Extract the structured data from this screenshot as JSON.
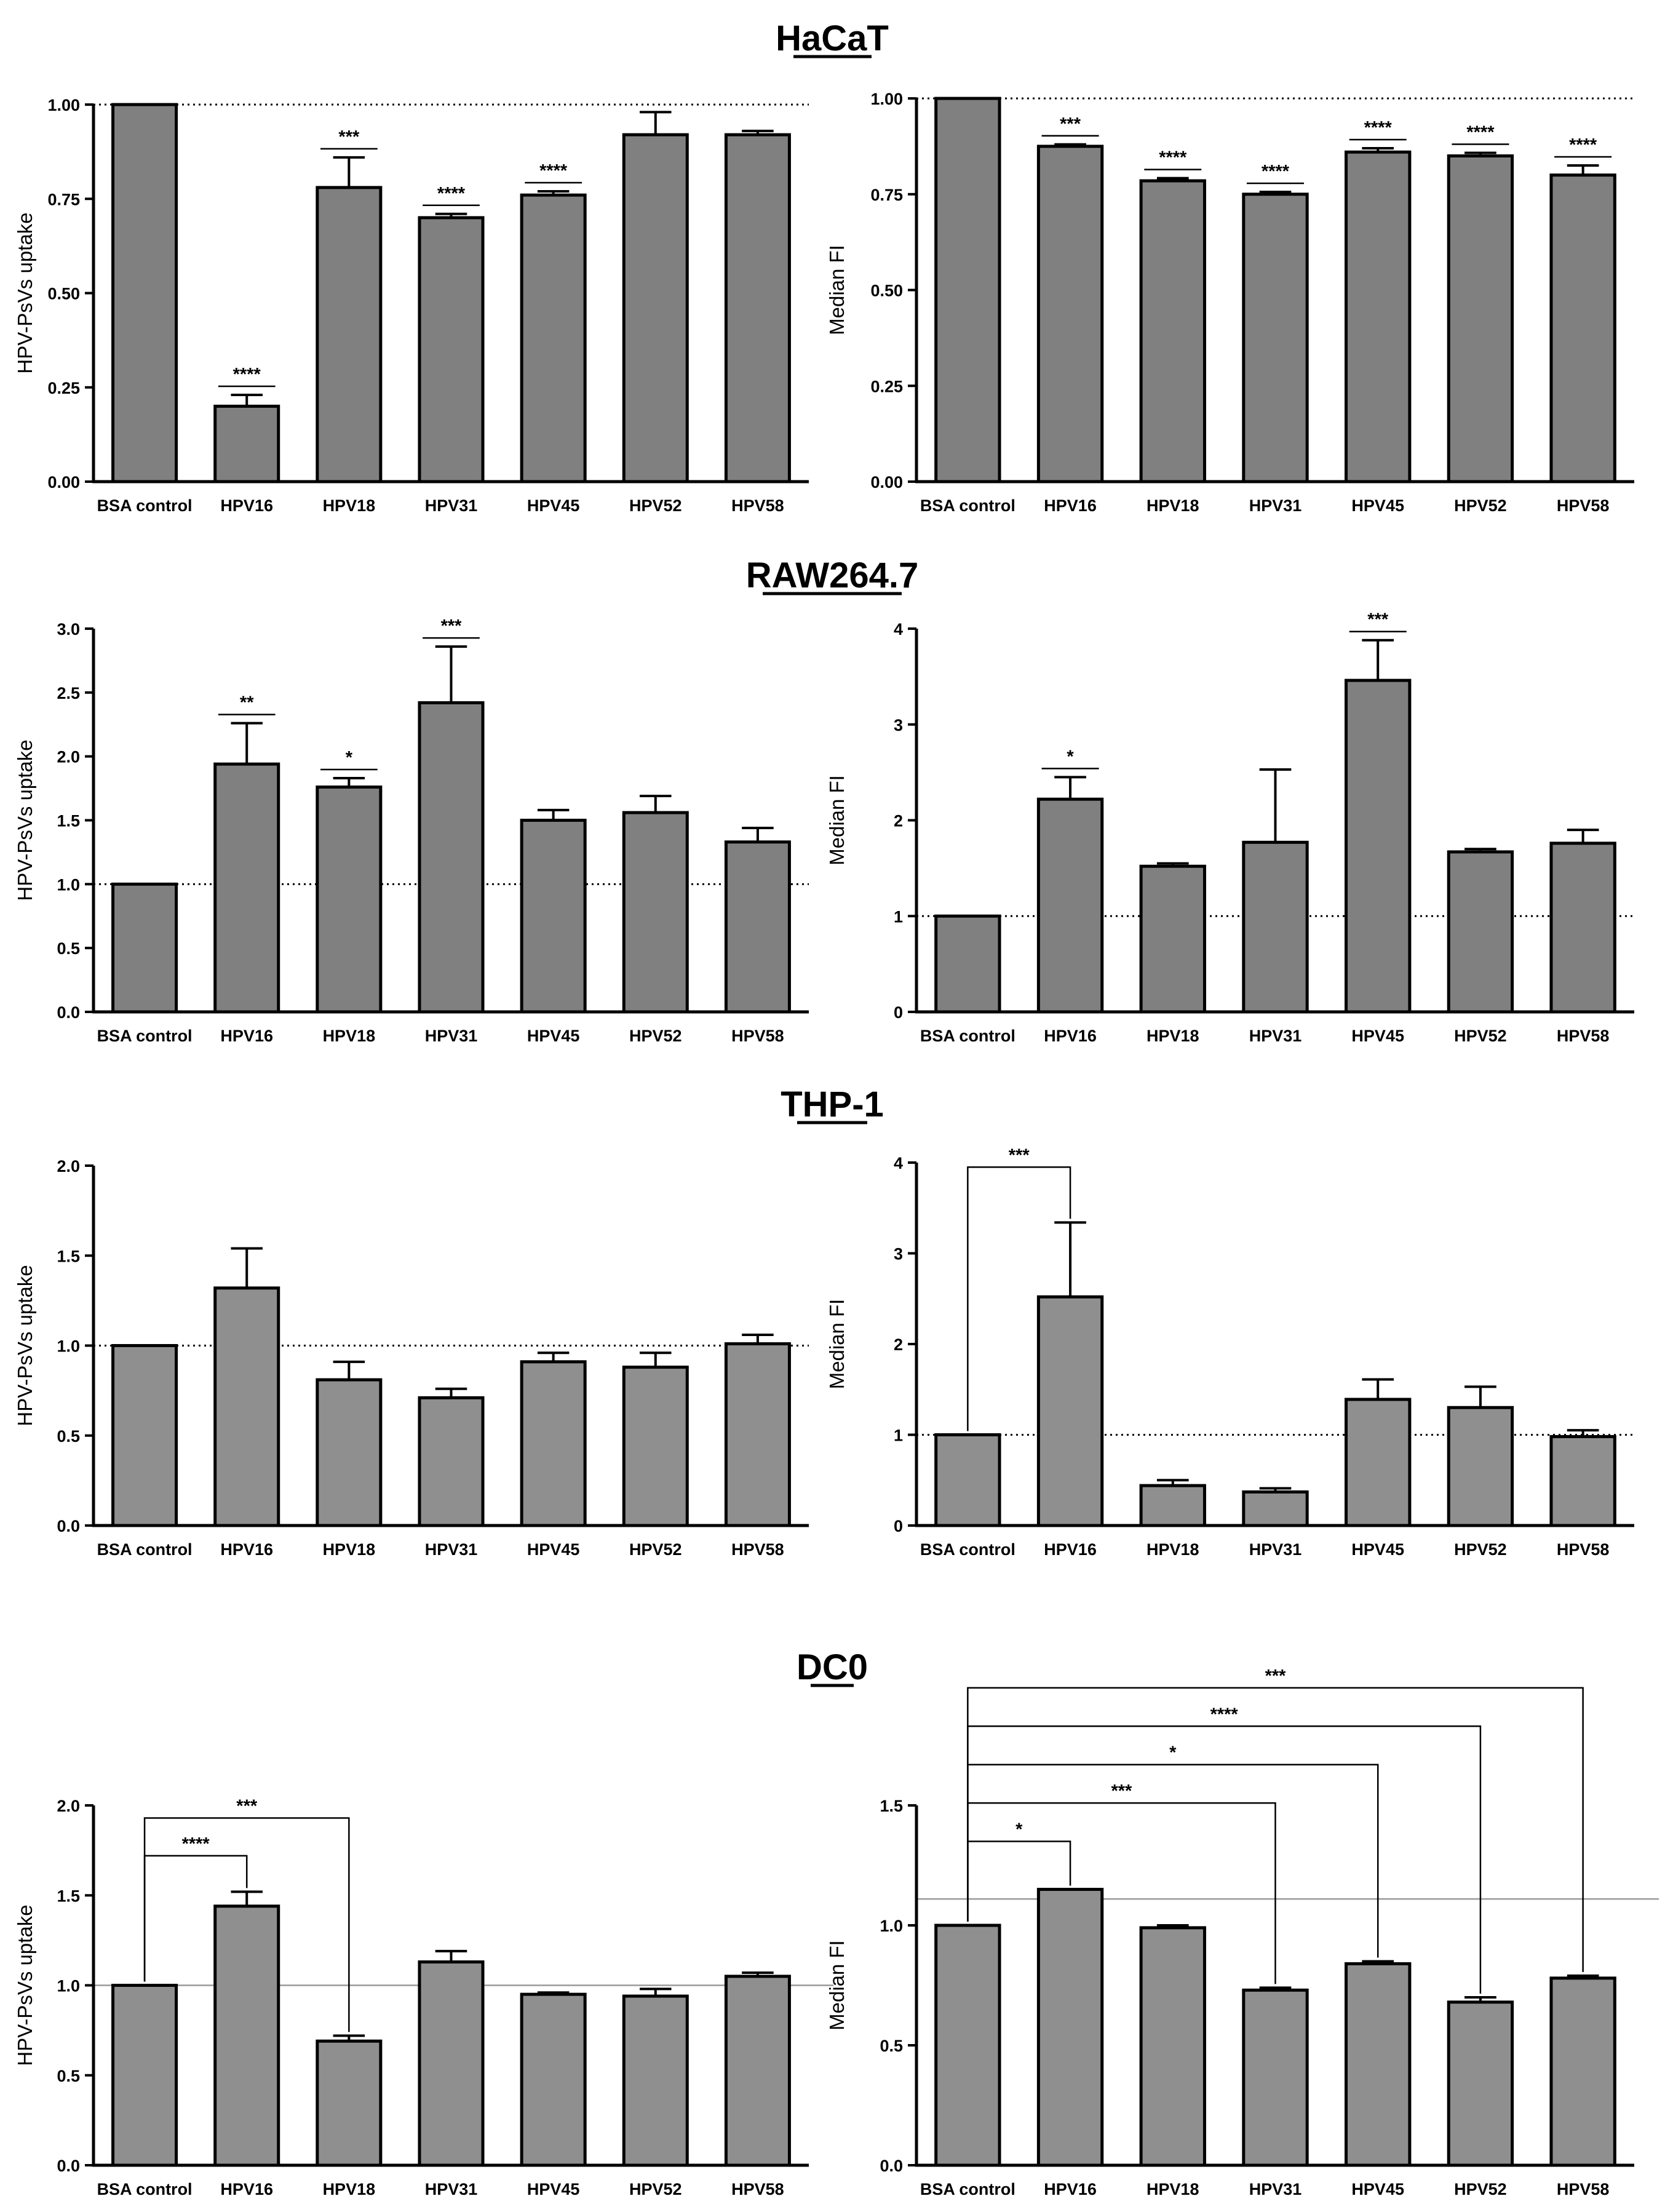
{
  "colors": {
    "bar": "#808080",
    "bar_light": "#8f8f8f",
    "stroke": "#000000",
    "ref_line_dotted": "#000000",
    "ref_line_solid": "#9a9a9a"
  },
  "sections": [
    "HaCaT",
    "RAW264.7",
    "THP-1",
    "DC0"
  ],
  "chart_data": [
    {
      "type": "bar",
      "section": "HaCaT",
      "title": "",
      "xlabel": "",
      "ylabel": "HPV-PsVs uptake",
      "categories": [
        "BSA control",
        "HPV16",
        "HPV18",
        "HPV31",
        "HPV45",
        "HPV52",
        "HPV58"
      ],
      "values": [
        1.0,
        0.2,
        0.78,
        0.7,
        0.76,
        0.92,
        0.92
      ],
      "errors": [
        0,
        0.03,
        0.08,
        0.01,
        0.01,
        0.06,
        0.01
      ],
      "ylim": [
        0,
        1.0
      ],
      "yticks": [
        0,
        0.25,
        0.5,
        0.75,
        1.0
      ],
      "ytick_labels": [
        "0.00",
        "0.25",
        "0.50",
        "0.75",
        "1.00"
      ],
      "reference_line": {
        "value": 1.0,
        "style": "dotted"
      },
      "significance": [
        {
          "bar": 1,
          "label": "****"
        },
        {
          "bar": 2,
          "label": "***"
        },
        {
          "bar": 3,
          "label": "****"
        },
        {
          "bar": 4,
          "label": "****"
        }
      ],
      "brackets": []
    },
    {
      "type": "bar",
      "section": "HaCaT",
      "title": "",
      "xlabel": "",
      "ylabel": "Median FI",
      "categories": [
        "BSA control",
        "HPV16",
        "HPV18",
        "HPV31",
        "HPV45",
        "HPV52",
        "HPV58"
      ],
      "values": [
        1.0,
        0.875,
        0.785,
        0.75,
        0.86,
        0.85,
        0.8
      ],
      "errors": [
        0,
        0.005,
        0.007,
        0.006,
        0.01,
        0.008,
        0.025
      ],
      "ylim": [
        0,
        1.0
      ],
      "yticks": [
        0,
        0.25,
        0.5,
        0.75,
        1.0
      ],
      "ytick_labels": [
        "0.00",
        "0.25",
        "0.50",
        "0.75",
        "1.00"
      ],
      "reference_line": {
        "value": 1.0,
        "style": "dotted"
      },
      "significance": [
        {
          "bar": 1,
          "label": "***"
        },
        {
          "bar": 2,
          "label": "****"
        },
        {
          "bar": 3,
          "label": "****"
        },
        {
          "bar": 4,
          "label": "****"
        },
        {
          "bar": 5,
          "label": "****"
        },
        {
          "bar": 6,
          "label": "****"
        }
      ],
      "brackets": []
    },
    {
      "type": "bar",
      "section": "RAW264.7",
      "title": "",
      "xlabel": "",
      "ylabel": "HPV-PsVs uptake",
      "categories": [
        "BSA control",
        "HPV16",
        "HPV18",
        "HPV31",
        "HPV45",
        "HPV52",
        "HPV58"
      ],
      "values": [
        1.0,
        1.94,
        1.76,
        2.42,
        1.5,
        1.56,
        1.33
      ],
      "errors": [
        0,
        0.32,
        0.07,
        0.44,
        0.08,
        0.13,
        0.11
      ],
      "ylim": [
        0,
        3.0
      ],
      "yticks": [
        0,
        0.5,
        1.0,
        1.5,
        2.0,
        2.5,
        3.0
      ],
      "ytick_labels": [
        "0.0",
        "0.5",
        "1.0",
        "1.5",
        "2.0",
        "2.5",
        "3.0"
      ],
      "reference_line": {
        "value": 1.0,
        "style": "dotted"
      },
      "significance": [
        {
          "bar": 1,
          "label": "**"
        },
        {
          "bar": 2,
          "label": "*"
        },
        {
          "bar": 3,
          "label": "***"
        }
      ],
      "brackets": []
    },
    {
      "type": "bar",
      "section": "RAW264.7",
      "title": "",
      "xlabel": "",
      "ylabel": "Median FI",
      "categories": [
        "BSA control",
        "HPV16",
        "HPV18",
        "HPV31",
        "HPV45",
        "HPV52",
        "HPV58"
      ],
      "values": [
        1.0,
        2.22,
        1.52,
        1.77,
        3.46,
        1.67,
        1.76
      ],
      "errors": [
        0,
        0.23,
        0.03,
        0.76,
        0.42,
        0.03,
        0.14
      ],
      "ylim": [
        0,
        4
      ],
      "yticks": [
        0,
        1,
        2,
        3,
        4
      ],
      "ytick_labels": [
        "0",
        "1",
        "2",
        "3",
        "4"
      ],
      "reference_line": {
        "value": 1.0,
        "style": "dotted"
      },
      "significance": [
        {
          "bar": 1,
          "label": "*"
        },
        {
          "bar": 4,
          "label": "***"
        }
      ],
      "brackets": []
    },
    {
      "type": "bar",
      "section": "THP-1",
      "title": "",
      "xlabel": "",
      "ylabel": "HPV-PsVs uptake",
      "categories": [
        "BSA control",
        "HPV16",
        "HPV18",
        "HPV31",
        "HPV45",
        "HPV52",
        "HPV58"
      ],
      "values": [
        1.0,
        1.32,
        0.81,
        0.71,
        0.91,
        0.88,
        1.01
      ],
      "errors": [
        0,
        0.22,
        0.1,
        0.05,
        0.05,
        0.08,
        0.05
      ],
      "ylim": [
        0,
        2.0
      ],
      "yticks": [
        0,
        0.5,
        1.0,
        1.5,
        2.0
      ],
      "ytick_labels": [
        "0.0",
        "0.5",
        "1.0",
        "1.5",
        "2.0"
      ],
      "reference_line": {
        "value": 1.0,
        "style": "dotted"
      },
      "significance": [],
      "brackets": []
    },
    {
      "type": "bar",
      "section": "THP-1",
      "title": "",
      "xlabel": "",
      "ylabel": "Median FI",
      "categories": [
        "BSA control",
        "HPV16",
        "HPV18",
        "HPV31",
        "HPV45",
        "HPV52",
        "HPV58"
      ],
      "values": [
        1.0,
        2.52,
        0.44,
        0.37,
        1.39,
        1.3,
        0.98
      ],
      "errors": [
        0,
        0.82,
        0.06,
        0.04,
        0.22,
        0.23,
        0.07
      ],
      "ylim": [
        0,
        4
      ],
      "yticks": [
        0,
        1,
        2,
        3,
        4
      ],
      "ytick_labels": [
        "0",
        "1",
        "2",
        "3",
        "4"
      ],
      "reference_line": {
        "value": 1.0,
        "style": "dotted"
      },
      "significance": [],
      "brackets": [
        {
          "from": 0,
          "to": 1,
          "value": 3.95,
          "label": "***"
        }
      ]
    },
    {
      "type": "bar",
      "section": "DC0",
      "title": "",
      "xlabel": "",
      "ylabel": "HPV-PsVs uptake",
      "categories": [
        "BSA control",
        "HPV16",
        "HPV18",
        "HPV31",
        "HPV45",
        "HPV52",
        "HPV58"
      ],
      "values": [
        1.0,
        1.44,
        0.69,
        1.13,
        0.95,
        0.94,
        1.05
      ],
      "errors": [
        0,
        0.08,
        0.03,
        0.06,
        0.01,
        0.04,
        0.02
      ],
      "ylim": [
        0,
        2.0
      ],
      "yticks": [
        0,
        0.5,
        1.0,
        1.5,
        2.0
      ],
      "ytick_labels": [
        "0.0",
        "0.5",
        "1.0",
        "1.5",
        "2.0"
      ],
      "reference_line": {
        "value": 1.0,
        "style": "solid"
      },
      "significance": [],
      "brackets": [
        {
          "from": 0,
          "to": 1,
          "value": 1.72,
          "label": "****"
        },
        {
          "from": 0,
          "to": 2,
          "value": 1.93,
          "label": "***"
        }
      ]
    },
    {
      "type": "bar",
      "section": "DC0",
      "title": "",
      "xlabel": "",
      "ylabel": "Median FI",
      "categories": [
        "BSA control",
        "HPV16",
        "HPV18",
        "HPV31",
        "HPV45",
        "HPV52",
        "HPV58"
      ],
      "values": [
        1.0,
        1.15,
        0.99,
        0.73,
        0.84,
        0.68,
        0.78
      ],
      "errors": [
        0,
        0,
        0.01,
        0.01,
        0.01,
        0.02,
        0.01
      ],
      "ylim": [
        0,
        1.5
      ],
      "yticks": [
        0,
        0.5,
        1.0,
        1.5
      ],
      "ytick_labels": [
        "0.0",
        "0.5",
        "1.0",
        "1.5"
      ],
      "reference_line": {
        "value": 1.11,
        "style": "solid"
      },
      "significance": [],
      "brackets": [
        {
          "from": 0,
          "to": 1,
          "value": 1.35,
          "label": "*"
        },
        {
          "from": 0,
          "to": 3,
          "value": 1.51,
          "label": "***"
        },
        {
          "from": 0,
          "to": 4,
          "value": 1.67,
          "label": "*"
        },
        {
          "from": 0,
          "to": 5,
          "value": 1.83,
          "label": "****"
        },
        {
          "from": 0,
          "to": 6,
          "value": 1.99,
          "label": "***"
        }
      ]
    }
  ]
}
